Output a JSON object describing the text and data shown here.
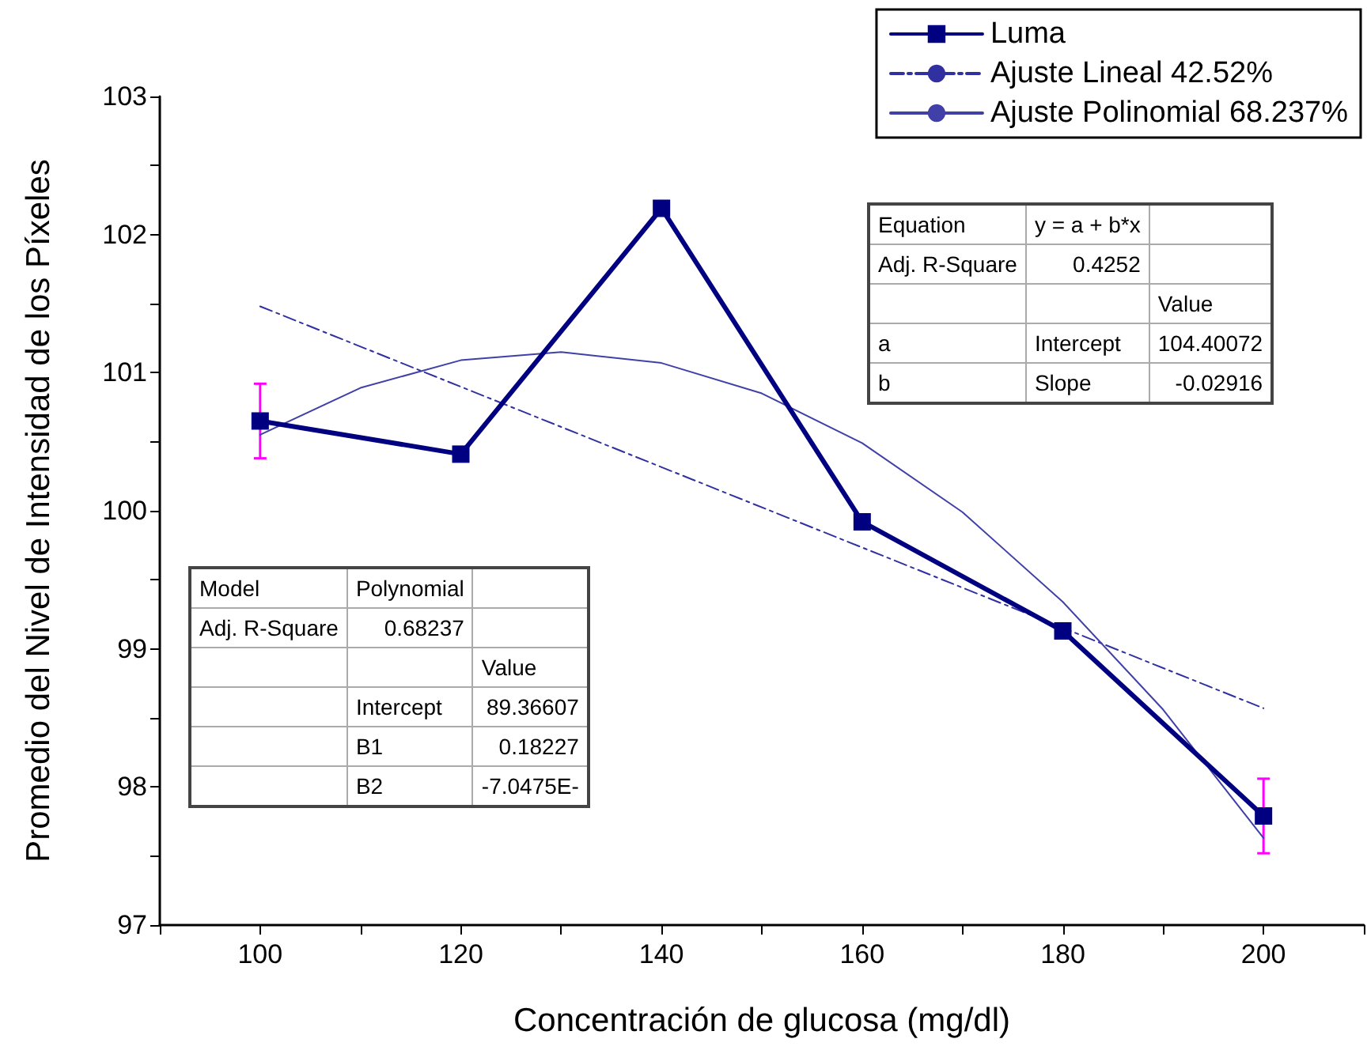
{
  "chart_data": {
    "type": "line",
    "xlabel": "Concentración de glucosa (mg/dl)",
    "ylabel": "Promedio del Nivel de Intensidad de los Píxeles",
    "xlim": [
      90,
      210
    ],
    "xticks": [
      {
        "value": 90,
        "label": null
      },
      100,
      {
        "value": 110,
        "label": null
      },
      120,
      {
        "value": 130,
        "label": null
      },
      140,
      {
        "value": 150,
        "label": null
      },
      160,
      {
        "value": 170,
        "label": null
      },
      180,
      {
        "value": 190,
        "label": null
      },
      200,
      {
        "value": 210,
        "label": null
      }
    ],
    "ylim": [
      97,
      103
    ],
    "yticks": [
      97,
      {
        "value": 97.5,
        "label": null
      },
      98,
      {
        "value": 98.5,
        "label": null
      },
      99,
      {
        "value": 99.5,
        "label": null
      },
      100,
      {
        "value": 100.5,
        "label": null
      },
      101,
      {
        "value": 101.5,
        "label": null
      },
      102,
      {
        "value": 102.5,
        "label": null
      },
      103
    ],
    "grid": false,
    "legend": "top right",
    "series": [
      {
        "name": "Luma",
        "color": "#000080",
        "marker": "square",
        "line_style": "solid",
        "x": [
          100,
          120,
          140,
          160,
          180,
          200
        ],
        "values": [
          100.65,
          100.41,
          102.19,
          99.92,
          99.13,
          97.79
        ],
        "errors": [
          0.27,
          null,
          null,
          null,
          null,
          0.27
        ]
      },
      {
        "name": "Ajuste Lineal 42.52%",
        "color": "#3030a0",
        "marker": "none",
        "line_style": "dashed",
        "x": [
          100,
          200
        ],
        "values": [
          101.48,
          98.57
        ]
      },
      {
        "name": "Ajuste Polinomial 68.237%",
        "color": "#4040a8",
        "marker": "none",
        "line_style": "solid",
        "x": [
          100,
          110,
          120,
          130,
          140,
          150,
          160,
          170,
          180,
          190,
          200
        ],
        "values": [
          100.55,
          100.89,
          101.09,
          101.15,
          101.07,
          100.85,
          100.49,
          99.99,
          99.34,
          98.56,
          97.63
        ]
      }
    ],
    "annotations": [
      "Equation\ty = a + b*x\t",
      "Adj. R-Square\t0.4252\t",
      "\t\tValue",
      "a\tIntercept\t104.40072",
      "b\tSlope\t-0.02916",
      "Model\tPolynomial\t",
      "Adj. R-Square\t0.68237\t",
      "\t\tValue",
      "\tIntercept\t89.36607",
      "\tB1\t0.18227",
      "\tB2\t-7.0475E-"
    ]
  }
}
